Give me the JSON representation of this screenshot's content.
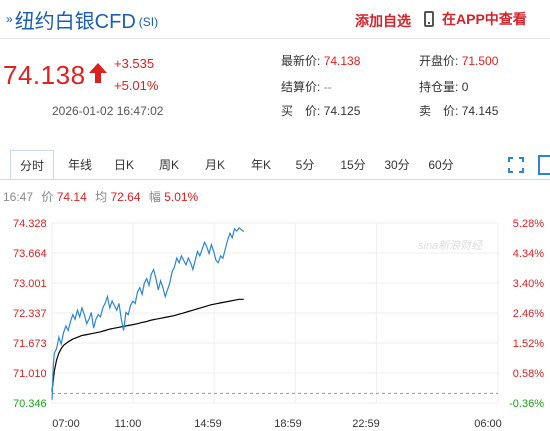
{
  "header": {
    "title_mark": "»",
    "name": "纽约白银CFD",
    "code": "(SI)",
    "add_watchlist": "添加自选",
    "app_link": "在APP中查看"
  },
  "quote": {
    "price": "74.138",
    "change": "+3.535",
    "change_pct": "+5.01%",
    "timestamp": "2026-01-02 16:47:02",
    "direction": "up",
    "up_color": "#e02020",
    "latest_label": "最新价:",
    "latest_value": "74.138",
    "open_label": "开盘价:",
    "open_value": "71.500",
    "settle_label": "结算价:",
    "settle_value": "--",
    "position_label": "持仓量:",
    "position_value": "0",
    "buy_label": "买　价:",
    "buy_value": "74.125",
    "sell_label": "卖　价:",
    "sell_value": "74.145"
  },
  "tabs": [
    {
      "label": "分时",
      "active": true
    },
    {
      "label": "年线"
    },
    {
      "label": "日K"
    },
    {
      "label": "周K"
    },
    {
      "label": "月K"
    },
    {
      "label": "年K"
    },
    {
      "label": "5分"
    },
    {
      "label": "15分"
    },
    {
      "label": "30分"
    },
    {
      "label": "60分"
    }
  ],
  "toolbar_icons": [
    "fullscreen-icon",
    "panel-icon"
  ],
  "infoline": {
    "time": "16:47",
    "price_label": "价",
    "price": "74.14",
    "avg_label": "均",
    "avg": "72.64",
    "amp_label": "幅",
    "amp": "5.01%"
  },
  "watermark": "sina新浪财经",
  "chart_data": {
    "type": "line",
    "y_ticks": [
      "74.328",
      "73.664",
      "73.001",
      "72.337",
      "71.673",
      "71.010",
      "70.346"
    ],
    "pct_ticks": [
      "5.28%",
      "4.34%",
      "3.40%",
      "2.46%",
      "1.52%",
      "0.58%",
      "-0.36%"
    ],
    "x_ticks": [
      "07:00",
      "11:00",
      "14:59",
      "18:59",
      "22:59",
      "06:00"
    ],
    "ylim": [
      70.346,
      74.328
    ],
    "prev_close": 70.603,
    "colors": {
      "price_line": "#2b86cf",
      "avg_line": "#000000",
      "up_tick": "#e02020",
      "down_tick": "#1aa31a"
    },
    "series": [
      {
        "name": "价",
        "points": [
          [
            0,
            70.42
          ],
          [
            0.6,
            71.2
          ],
          [
            1,
            71.45
          ],
          [
            2,
            71.55
          ],
          [
            3,
            71.8
          ],
          [
            4,
            71.65
          ],
          [
            5,
            71.9
          ],
          [
            6,
            72.05
          ],
          [
            7,
            71.95
          ],
          [
            8,
            72.15
          ],
          [
            9,
            72.3
          ],
          [
            10,
            72.2
          ],
          [
            11,
            72.4
          ],
          [
            12,
            72.25
          ],
          [
            13,
            72.45
          ],
          [
            14,
            72.3
          ],
          [
            15,
            72.1
          ],
          [
            16,
            72.2
          ],
          [
            17,
            72.35
          ],
          [
            18,
            72.0
          ],
          [
            19,
            72.2
          ],
          [
            20,
            72.3
          ],
          [
            21,
            72.25
          ],
          [
            22,
            72.45
          ],
          [
            23,
            72.55
          ],
          [
            24,
            72.7
          ],
          [
            25,
            72.45
          ],
          [
            26,
            72.6
          ],
          [
            27,
            72.5
          ],
          [
            28,
            72.4
          ],
          [
            29,
            72.55
          ],
          [
            30,
            72.2
          ],
          [
            31,
            71.95
          ],
          [
            31.5,
            72.15
          ],
          [
            32,
            72.35
          ],
          [
            33,
            72.3
          ],
          [
            34,
            72.5
          ],
          [
            35,
            72.6
          ],
          [
            36,
            72.55
          ],
          [
            37,
            72.8
          ],
          [
            38,
            72.9
          ],
          [
            39,
            72.75
          ],
          [
            40,
            73.0
          ],
          [
            41,
            73.1
          ],
          [
            42,
            72.95
          ],
          [
            43,
            73.2
          ],
          [
            44,
            73.3
          ],
          [
            45,
            73.1
          ],
          [
            46,
            72.85
          ],
          [
            47,
            73.05
          ],
          [
            48,
            72.9
          ],
          [
            49,
            72.7
          ],
          [
            50,
            72.85
          ],
          [
            51,
            73.0
          ],
          [
            52,
            73.25
          ],
          [
            53,
            73.35
          ],
          [
            54,
            73.55
          ],
          [
            55,
            73.45
          ],
          [
            56,
            73.6
          ],
          [
            57,
            73.5
          ],
          [
            58,
            73.4
          ],
          [
            59,
            73.55
          ],
          [
            60,
            73.45
          ],
          [
            61,
            73.3
          ],
          [
            62,
            73.5
          ],
          [
            63,
            73.7
          ],
          [
            64,
            73.6
          ],
          [
            65,
            73.75
          ],
          [
            66,
            73.9
          ],
          [
            67,
            73.8
          ],
          [
            68,
            73.65
          ],
          [
            69,
            73.85
          ],
          [
            70,
            73.7
          ],
          [
            71,
            73.5
          ],
          [
            72,
            73.45
          ],
          [
            73,
            73.6
          ],
          [
            74,
            73.55
          ],
          [
            75,
            73.75
          ],
          [
            76,
            73.95
          ],
          [
            77,
            74.1
          ],
          [
            78,
            74.0
          ],
          [
            79,
            74.2
          ],
          [
            80,
            74.15
          ],
          [
            81,
            74.22
          ],
          [
            82,
            74.18
          ],
          [
            83,
            74.14
          ]
        ]
      },
      {
        "name": "均",
        "points": [
          [
            0,
            70.6
          ],
          [
            1,
            71.05
          ],
          [
            2,
            71.3
          ],
          [
            3,
            71.45
          ],
          [
            4,
            71.55
          ],
          [
            5,
            71.62
          ],
          [
            7,
            71.7
          ],
          [
            9,
            71.76
          ],
          [
            11,
            71.8
          ],
          [
            13,
            71.84
          ],
          [
            15,
            71.86
          ],
          [
            17,
            71.88
          ],
          [
            19,
            71.9
          ],
          [
            21,
            71.92
          ],
          [
            23,
            71.95
          ],
          [
            25,
            71.98
          ],
          [
            27,
            72.0
          ],
          [
            29,
            72.02
          ],
          [
            31,
            72.04
          ],
          [
            33,
            72.06
          ],
          [
            35,
            72.08
          ],
          [
            37,
            72.1
          ],
          [
            39,
            72.13
          ],
          [
            41,
            72.15
          ],
          [
            43,
            72.18
          ],
          [
            45,
            72.2
          ],
          [
            47,
            72.22
          ],
          [
            49,
            72.24
          ],
          [
            51,
            72.26
          ],
          [
            53,
            72.28
          ],
          [
            55,
            72.31
          ],
          [
            57,
            72.34
          ],
          [
            59,
            72.37
          ],
          [
            61,
            72.4
          ],
          [
            63,
            72.43
          ],
          [
            65,
            72.46
          ],
          [
            67,
            72.49
          ],
          [
            69,
            72.52
          ],
          [
            71,
            72.54
          ],
          [
            73,
            72.56
          ],
          [
            75,
            72.58
          ],
          [
            77,
            72.6
          ],
          [
            79,
            72.62
          ],
          [
            81,
            72.64
          ],
          [
            83,
            72.64
          ]
        ]
      }
    ],
    "x_units": "minutes-scale index (0=07:00 open, 24=11:00 approx, 48=14:59 approx)",
    "grid": true
  }
}
